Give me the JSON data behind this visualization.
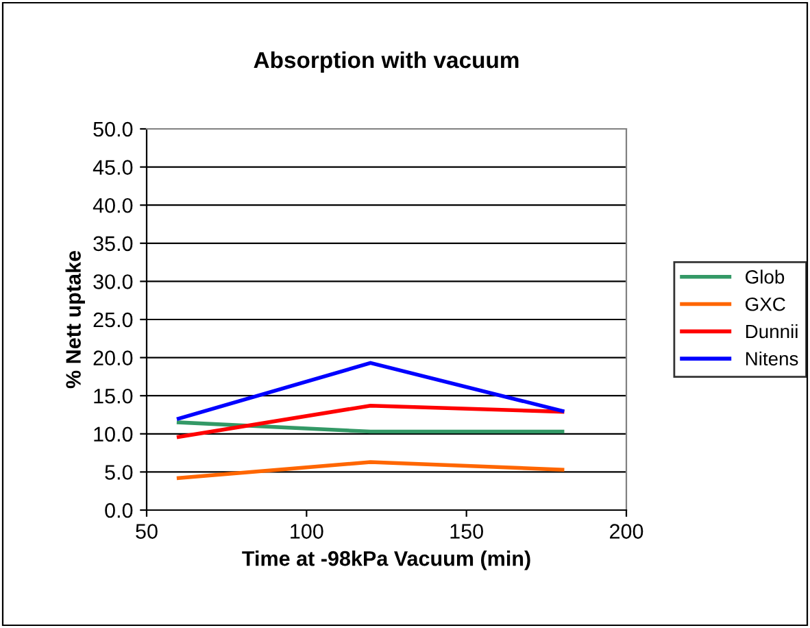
{
  "chart_data": {
    "type": "line",
    "title": "Absorption with vacuum",
    "xlabel": "Time at -98kPa Vacuum (min)",
    "ylabel": "% Nett uptake",
    "x": [
      60,
      120,
      180
    ],
    "series": [
      {
        "name": "Glob",
        "color": "#339966",
        "values": [
          11.5,
          10.3,
          10.3
        ]
      },
      {
        "name": "GXC",
        "color": "#ff6600",
        "values": [
          4.2,
          6.3,
          5.3
        ]
      },
      {
        "name": "Dunnii",
        "color": "#ff0000",
        "values": [
          9.6,
          13.7,
          12.9
        ]
      },
      {
        "name": "Nitens",
        "color": "#0000ff",
        "values": [
          12.0,
          19.3,
          13.0
        ]
      }
    ],
    "xlim": [
      50,
      200
    ],
    "xticks": [
      50,
      100,
      150,
      200
    ],
    "ylim": [
      0,
      50
    ],
    "yticks": [
      {
        "value": 0,
        "label": "0.0"
      },
      {
        "value": 5,
        "label": "5.0"
      },
      {
        "value": 10,
        "label": "10.0"
      },
      {
        "value": 15,
        "label": "15.0"
      },
      {
        "value": 20,
        "label": "20.0"
      },
      {
        "value": 25,
        "label": "25.0"
      },
      {
        "value": 30,
        "label": "30.0"
      },
      {
        "value": 35,
        "label": "35.0"
      },
      {
        "value": 40,
        "label": "40.0"
      },
      {
        "value": 45,
        "label": "45.0"
      },
      {
        "value": 50,
        "label": "50.0"
      }
    ],
    "grid": "y",
    "legend": "right",
    "marker": "none",
    "line_style": "solid"
  }
}
